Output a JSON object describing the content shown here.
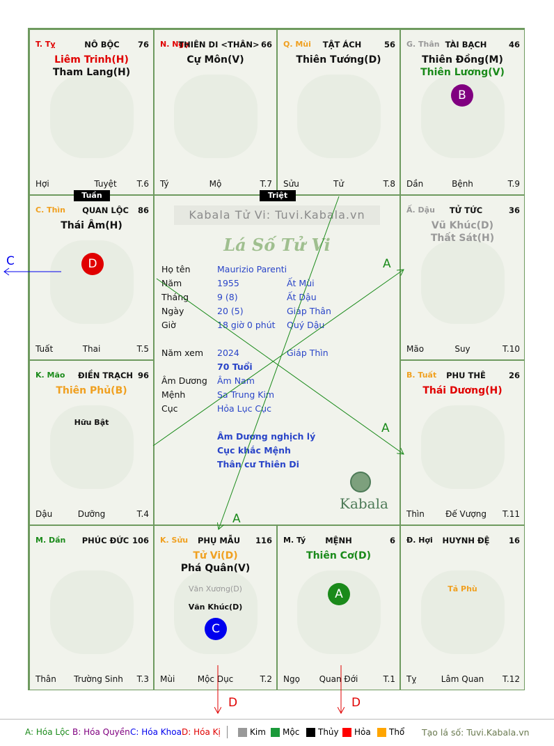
{
  "watermark": "Kabala Tử Vi: Tuvi.Kabala.vn",
  "title": "Lá Số Tử Vi",
  "logo_text": "Kabala",
  "cells": {
    "c00": {
      "stem": "T. Tỵ",
      "stem_color": "#e00000",
      "name": "NÔ BỘC",
      "num": "76",
      "stars": [
        {
          "t": "Liêm Trinh(H)",
          "c": "#e00000"
        },
        {
          "t": "Tham Lang(H)",
          "c": "#111111"
        }
      ],
      "bl": "Hợi",
      "bc": "Tuyệt",
      "br": "T.6"
    },
    "c01": {
      "stem": "N. Ngọ",
      "stem_color": "#e00000",
      "name": "THIÊN DI <THÂN>",
      "num": "66",
      "stars": [
        {
          "t": "Cự Môn(V)",
          "c": "#111111"
        }
      ],
      "bl": "Tý",
      "bc": "Mộ",
      "br": "T.7"
    },
    "c02": {
      "stem": "Q. Mùi",
      "stem_color": "#f0a020",
      "name": "TẬT ÁCH",
      "num": "56",
      "stars": [
        {
          "t": "Thiên Tướng(D)",
          "c": "#111111"
        }
      ],
      "bl": "Sửu",
      "bc": "Tử",
      "br": "T.8"
    },
    "c03": {
      "stem": "G. Thân",
      "stem_color": "#999999",
      "name": "TÀI BẠCH",
      "num": "46",
      "stars": [
        {
          "t": "Thiên Đồng(M)",
          "c": "#111111"
        },
        {
          "t": "Thiên Lương(V)",
          "c": "#1a8a1a"
        }
      ],
      "bl": "Dần",
      "bc": "Bệnh",
      "br": "T.9"
    },
    "c10": {
      "stem": "C. Thìn",
      "stem_color": "#f0a020",
      "name": "QUAN LỘC",
      "num": "86",
      "stars": [
        {
          "t": "Thái Âm(H)",
          "c": "#111111"
        }
      ],
      "bl": "Tuất",
      "bc": "Thai",
      "br": "T.5"
    },
    "c13": {
      "stem": "Ấ. Dậu",
      "stem_color": "#999999",
      "name": "TỬ TỨC",
      "num": "36",
      "stars": [
        {
          "t": "Vũ Khúc(D)",
          "c": "#999999"
        },
        {
          "t": "Thất Sát(H)",
          "c": "#999999"
        }
      ],
      "bl": "Mão",
      "bc": "Suy",
      "br": "T.10"
    },
    "c20": {
      "stem": "K. Mão",
      "stem_color": "#1a8a1a",
      "name": "ĐIỀN TRẠCH",
      "num": "96",
      "stars": [
        {
          "t": "Thiên Phủ(B)",
          "c": "#f0a020"
        }
      ],
      "minor": "Hữu Bật",
      "bl": "Dậu",
      "bc": "Dưỡng",
      "br": "T.4"
    },
    "c23": {
      "stem": "B. Tuất",
      "stem_color": "#f0a020",
      "name": "PHU THÊ",
      "num": "26",
      "stars": [
        {
          "t": "Thái Dương(H)",
          "c": "#e00000"
        }
      ],
      "bl": "Thìn",
      "bc": "Đế Vượng",
      "br": "T.11"
    },
    "c30": {
      "stem": "M. Dần",
      "stem_color": "#1a8a1a",
      "name": "PHÚC ĐỨC",
      "num": "106",
      "stars": [],
      "bl": "Thân",
      "bc": "Trường Sinh",
      "br": "T.3"
    },
    "c31": {
      "stem": "K. Sửu",
      "stem_color": "#f0a020",
      "name": "PHỤ MẪU",
      "num": "116",
      "stars": [
        {
          "t": "Tử Vi(D)",
          "c": "#f0a020"
        },
        {
          "t": "Phá Quân(V)",
          "c": "#111111"
        }
      ],
      "minor1": "Văn Xương(D)",
      "minor2": "Văn Khúc(D)",
      "bl": "Mùi",
      "bc": "Mộc Dục",
      "br": "T.2"
    },
    "c32": {
      "stem": "M. Tý",
      "stem_color": "#111111",
      "name": "MỆNH",
      "num": "6",
      "stars": [
        {
          "t": "Thiên Cơ(D)",
          "c": "#1a8a1a"
        }
      ],
      "bl": "Ngọ",
      "bc": "Quan Đới",
      "br": "T.1"
    },
    "c33": {
      "stem": "Đ. Hợi",
      "stem_color": "#111111",
      "name": "HUYNH ĐỆ",
      "num": "16",
      "stars": [],
      "minor": "Tả Phù",
      "bl": "Tỵ",
      "bc": "Lâm Quan",
      "br": "T.12"
    }
  },
  "tags": {
    "tuan": "Tuần",
    "triet": "Triệt"
  },
  "badges": {
    "b": {
      "label": "B",
      "color": "#800080"
    },
    "d": {
      "label": "D",
      "color": "#e00000"
    },
    "c": {
      "label": "C",
      "color": "#0000ee"
    },
    "a": {
      "label": "A",
      "color": "#1a8a1a"
    }
  },
  "info": {
    "ho_ten": {
      "k": "Họ tên",
      "v1": "Maurizio Parenti"
    },
    "nam": {
      "k": "Năm",
      "v1": "1955",
      "v2": "Ất Mùi"
    },
    "thang": {
      "k": "Tháng",
      "v1": "9  (8)",
      "v2": "Ất Dậu"
    },
    "ngay": {
      "k": "Ngày",
      "v1": "20  (5)",
      "v2": "Giáp Thân"
    },
    "gio": {
      "k": "Giờ",
      "v1": "18 giờ 0 phút",
      "v2": "Quý Dậu"
    },
    "nam_xem": {
      "k": "Năm xem",
      "v1": "2024",
      "v2": "Giáp Thìn"
    },
    "tuoi": "70 Tuổi",
    "am_duong": {
      "k": "Âm Dương",
      "v1": "Âm Nam"
    },
    "menh": {
      "k": "Mệnh",
      "v1": "Sa Trung Kim"
    },
    "cuc": {
      "k": "Cục",
      "v1": "Hỏa Lục Cục"
    },
    "notes": [
      "Âm Dương nghịch lý",
      "Cục khắc Mệnh",
      "Thân cư Thiên Di"
    ]
  },
  "arrow_labels": {
    "a1": "A",
    "a2": "A",
    "a3": "A",
    "c": "C",
    "d1": "D",
    "d2": "D"
  },
  "legend": {
    "a": "A: Hóa Lộc",
    "b": "B: Hóa Quyền",
    "c": "C: Hóa Khoa",
    "d": "D: Hóa Kị",
    "kim": "Kim",
    "moc": "Mộc",
    "thuy": "Thủy",
    "hoa": "Hỏa",
    "tho": "Thổ",
    "credit": "Tạo lá số: Tuvi.Kabala.vn",
    "colors": {
      "kim": "#999999",
      "moc": "#1a9a3a",
      "thuy": "#000000",
      "hoa": "#ff0000",
      "tho": "#ffa500"
    }
  }
}
